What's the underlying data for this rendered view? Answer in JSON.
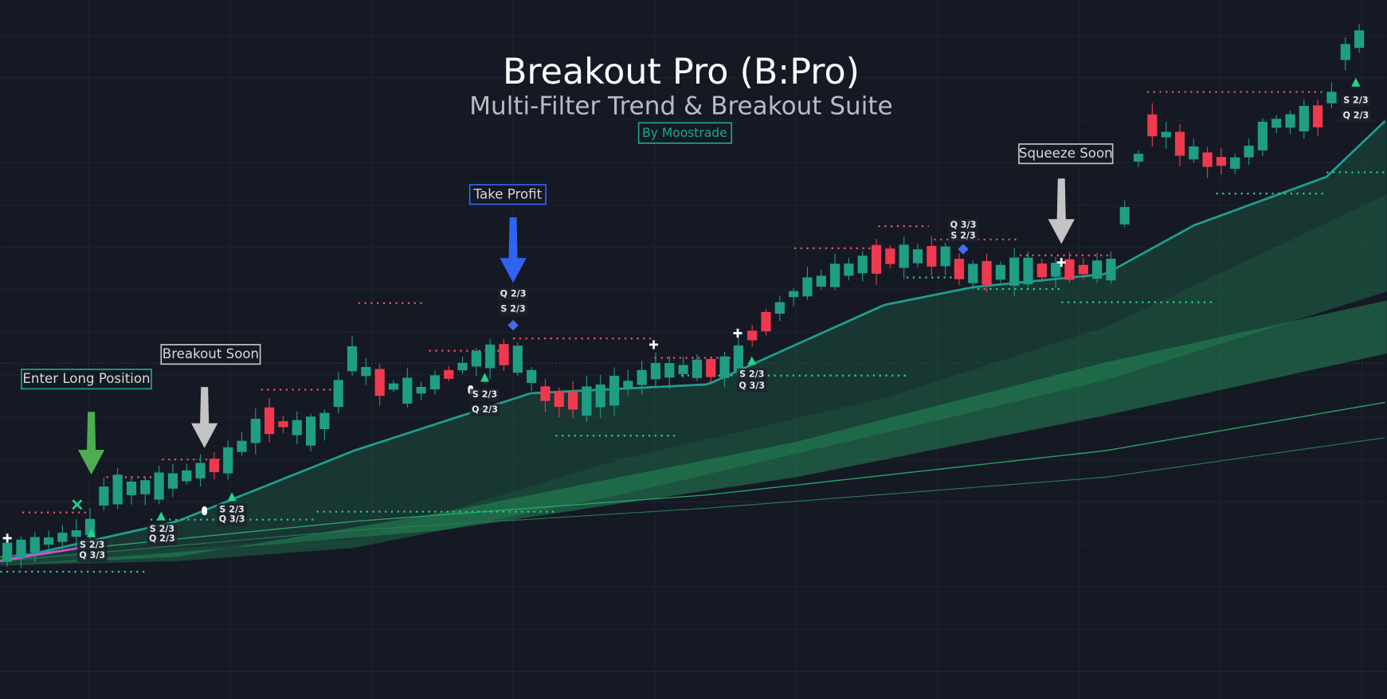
{
  "header": {
    "title": "Breakout Pro (B:Pro)",
    "subtitle": "Multi-Filter Trend & Breakout Suite",
    "author": "By Moostrade"
  },
  "callouts": [
    "Enter Long Position",
    "Breakout Soon",
    "Take Profit",
    "Squeeze Soon"
  ],
  "tags": [
    "S 2/3",
    "Q 3/3",
    "S 2/3",
    "Q 2/3",
    "S 2/3",
    "Q 3/3",
    "S 2/3",
    "Q 2/3",
    "Q 2/3",
    "S 2/3",
    "S 2/3",
    "Q 3/3",
    "Q 3/3",
    "S 2/3",
    "S 2/3",
    "Q 2/3"
  ]
}
